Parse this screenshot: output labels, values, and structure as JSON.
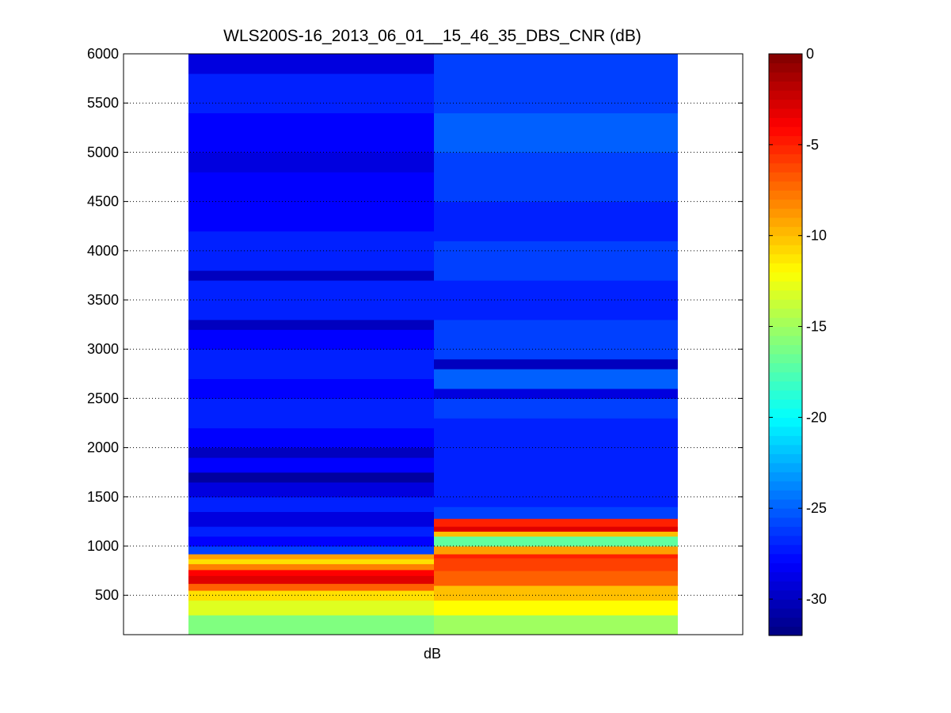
{
  "chart_data": {
    "type": "heatmap",
    "title": "WLS200S-16_2013_06_01__15_46_35_DBS_CNR (dB)",
    "xlabel": "dB",
    "ylabel": "",
    "ylim": [
      100,
      6000
    ],
    "yticks": [
      500,
      1000,
      1500,
      2000,
      2500,
      3000,
      3500,
      4000,
      4500,
      5000,
      5500,
      6000
    ],
    "grid": "horizontal dotted",
    "colormap": "jet",
    "colorbar": {
      "range": [
        -32,
        0
      ],
      "ticks": [
        0,
        -5,
        -10,
        -15,
        -20,
        -25,
        -30
      ],
      "placement": "right"
    },
    "columns": [
      {
        "segments": [
          {
            "from": 100,
            "to": 300,
            "value": -16
          },
          {
            "from": 300,
            "to": 450,
            "value": -13
          },
          {
            "from": 450,
            "to": 550,
            "value": -11
          },
          {
            "from": 550,
            "to": 620,
            "value": -7
          },
          {
            "from": 620,
            "to": 700,
            "value": -3
          },
          {
            "from": 700,
            "to": 760,
            "value": -4
          },
          {
            "from": 760,
            "to": 820,
            "value": -8
          },
          {
            "from": 820,
            "to": 870,
            "value": -11
          },
          {
            "from": 870,
            "to": 920,
            "value": -9
          },
          {
            "from": 920,
            "to": 1000,
            "value": -26
          },
          {
            "from": 1000,
            "to": 1100,
            "value": -28
          },
          {
            "from": 1100,
            "to": 1200,
            "value": -27
          },
          {
            "from": 1200,
            "to": 1350,
            "value": -29
          },
          {
            "from": 1350,
            "to": 1500,
            "value": -27
          },
          {
            "from": 1500,
            "to": 1650,
            "value": -29
          },
          {
            "from": 1650,
            "to": 1750,
            "value": -31
          },
          {
            "from": 1750,
            "to": 1900,
            "value": -28
          },
          {
            "from": 1900,
            "to": 2000,
            "value": -30
          },
          {
            "from": 2000,
            "to": 2200,
            "value": -28
          },
          {
            "from": 2200,
            "to": 2500,
            "value": -27
          },
          {
            "from": 2500,
            "to": 2700,
            "value": -28
          },
          {
            "from": 2700,
            "to": 3000,
            "value": -27
          },
          {
            "from": 3000,
            "to": 3200,
            "value": -28
          },
          {
            "from": 3200,
            "to": 3300,
            "value": -30
          },
          {
            "from": 3300,
            "to": 3700,
            "value": -27
          },
          {
            "from": 3700,
            "to": 3800,
            "value": -30
          },
          {
            "from": 3800,
            "to": 4200,
            "value": -27
          },
          {
            "from": 4200,
            "to": 4800,
            "value": -28
          },
          {
            "from": 4800,
            "to": 5000,
            "value": -29
          },
          {
            "from": 5000,
            "to": 5400,
            "value": -28
          },
          {
            "from": 5400,
            "to": 5800,
            "value": -27
          },
          {
            "from": 5800,
            "to": 6000,
            "value": -29
          }
        ]
      },
      {
        "segments": [
          {
            "from": 100,
            "to": 300,
            "value": -15
          },
          {
            "from": 300,
            "to": 450,
            "value": -12
          },
          {
            "from": 450,
            "to": 600,
            "value": -10
          },
          {
            "from": 600,
            "to": 750,
            "value": -7
          },
          {
            "from": 750,
            "to": 880,
            "value": -6
          },
          {
            "from": 880,
            "to": 920,
            "value": -5
          },
          {
            "from": 920,
            "to": 1000,
            "value": -9
          },
          {
            "from": 1000,
            "to": 1100,
            "value": -17
          },
          {
            "from": 1100,
            "to": 1150,
            "value": -10
          },
          {
            "from": 1150,
            "to": 1200,
            "value": -3
          },
          {
            "from": 1200,
            "to": 1280,
            "value": -5
          },
          {
            "from": 1280,
            "to": 1400,
            "value": -26
          },
          {
            "from": 1400,
            "to": 1700,
            "value": -27
          },
          {
            "from": 1700,
            "to": 2000,
            "value": -27
          },
          {
            "from": 2000,
            "to": 2300,
            "value": -27
          },
          {
            "from": 2300,
            "to": 2500,
            "value": -26
          },
          {
            "from": 2500,
            "to": 2600,
            "value": -29
          },
          {
            "from": 2600,
            "to": 2800,
            "value": -25
          },
          {
            "from": 2800,
            "to": 2900,
            "value": -30
          },
          {
            "from": 2900,
            "to": 3300,
            "value": -26
          },
          {
            "from": 3300,
            "to": 3700,
            "value": -27
          },
          {
            "from": 3700,
            "to": 4100,
            "value": -26
          },
          {
            "from": 4100,
            "to": 4500,
            "value": -27
          },
          {
            "from": 4500,
            "to": 5000,
            "value": -26
          },
          {
            "from": 5000,
            "to": 5400,
            "value": -25
          },
          {
            "from": 5400,
            "to": 6000,
            "value": -26
          }
        ]
      }
    ]
  }
}
